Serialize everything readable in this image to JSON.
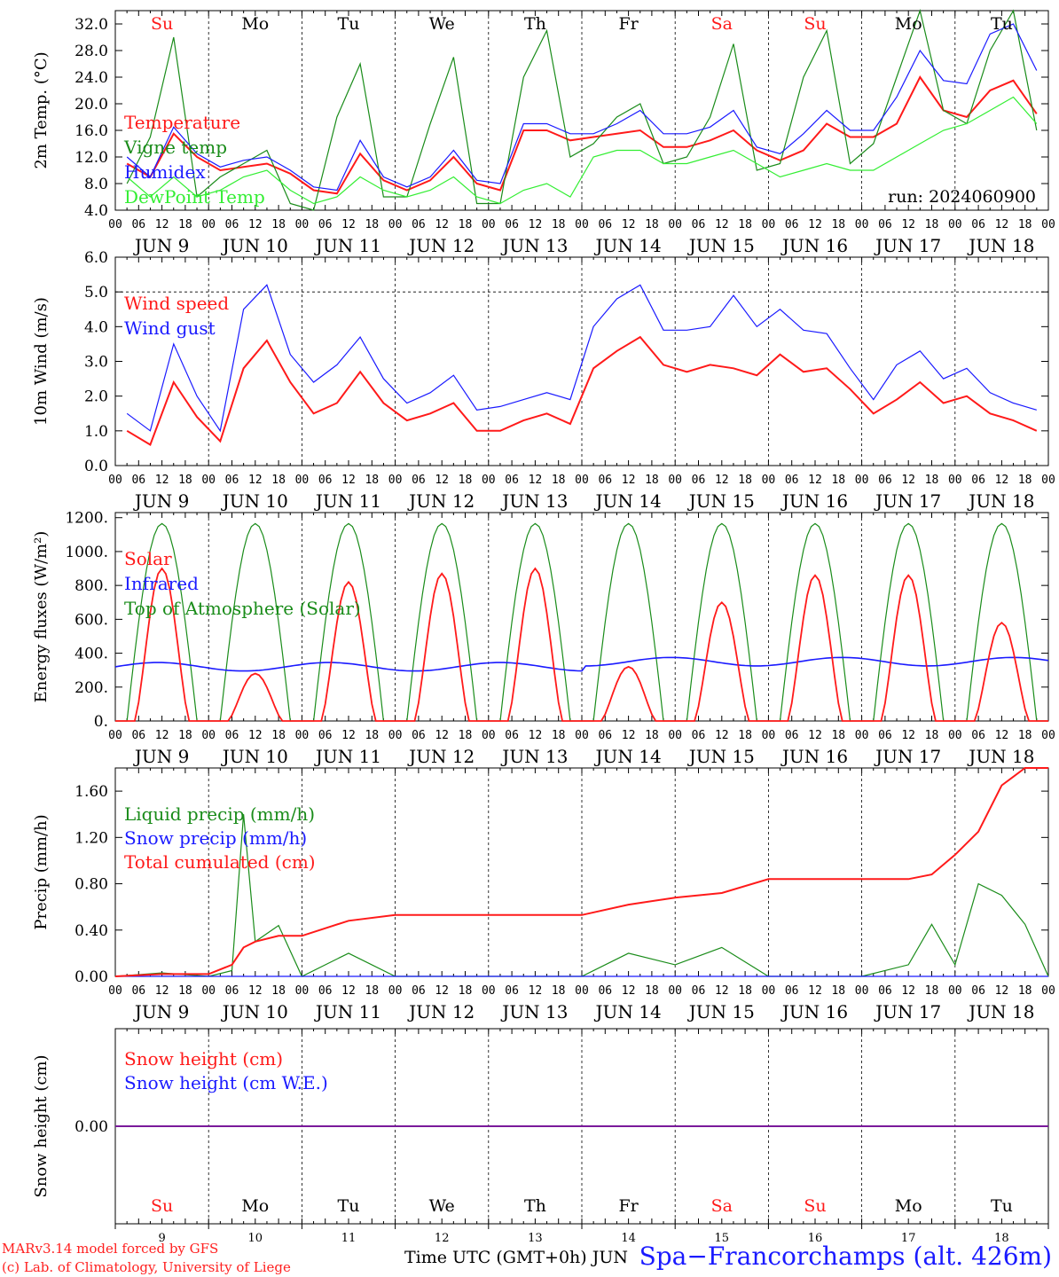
{
  "colors": {
    "red": "#ff1a1a",
    "green": "#1a8c1a",
    "blue": "#1a1aff",
    "lightgreen": "#33ee33",
    "purple": "#7a1a9a",
    "black": "#000000"
  },
  "x_axis": {
    "tick_labels": [
      "00",
      "06",
      "12",
      "18"
    ],
    "date_labels": [
      "JUN  9",
      "JUN 10",
      "JUN 11",
      "JUN 12",
      "JUN 13",
      "JUN 14",
      "JUN 15",
      "JUN 16",
      "JUN 17",
      "JUN 18"
    ],
    "weekday_labels": [
      "Su",
      "Mo",
      "Tu",
      "We",
      "Th",
      "Fr",
      "Sa",
      "Su",
      "Mo",
      "Tu"
    ],
    "weekday_colors": [
      "red",
      "black",
      "black",
      "black",
      "black",
      "black",
      "red",
      "red",
      "black",
      "black"
    ],
    "day_numbers": [
      "9",
      "10",
      "11",
      "12",
      "13",
      "14",
      "15",
      "16",
      "17",
      "18"
    ],
    "xlabel": "Time UTC (GMT+0h) JUN"
  },
  "chart_data": [
    {
      "type": "line",
      "ylabel": "2m Temp. (°C)",
      "ylim": [
        4,
        34
      ],
      "yticks": [
        "4.0",
        "8.0",
        "12.0",
        "16.0",
        "20.0",
        "24.0",
        "28.0",
        "32.0"
      ],
      "ytick_values": [
        4,
        8,
        12,
        16,
        20,
        24,
        28,
        32
      ],
      "annotation": "run: 2024060900",
      "x_hours": [
        0,
        6,
        12,
        18,
        24,
        30,
        36,
        42,
        48,
        54,
        60,
        66,
        72,
        78,
        84,
        90,
        96,
        102,
        108,
        114,
        120,
        126,
        132,
        138,
        144,
        150,
        156,
        162,
        168,
        174,
        180,
        186,
        192,
        198,
        204,
        210,
        216,
        222,
        228,
        234
      ],
      "series": [
        {
          "name": "Temperature",
          "color": "red",
          "values": [
            11,
            9,
            15.5,
            12,
            10,
            10.5,
            11,
            9.5,
            7,
            6.5,
            12.5,
            8.5,
            7,
            8.5,
            12,
            8,
            7,
            16,
            16,
            14.5,
            15,
            15.5,
            16,
            13.5,
            13.5,
            14.5,
            16,
            13,
            11.5,
            13,
            17,
            15,
            15,
            17,
            24,
            19,
            18,
            22,
            23.5,
            18.5
          ]
        },
        {
          "name": "Vigne temp",
          "color": "green",
          "values": [
            8,
            15,
            30,
            6,
            9,
            11,
            13,
            5,
            4,
            18,
            26,
            6,
            6,
            17,
            27,
            5,
            5,
            24,
            31,
            12,
            14,
            18,
            20,
            11,
            12,
            18,
            29,
            10,
            11,
            24,
            31,
            11,
            14,
            24,
            34,
            19,
            17,
            28,
            35,
            16
          ]
        },
        {
          "name": "Humidex",
          "color": "blue",
          "values": [
            12,
            9,
            16.5,
            12.5,
            10.5,
            11.5,
            12,
            10,
            7.5,
            7,
            14.5,
            9,
            7.5,
            9,
            13,
            8.5,
            8,
            17,
            17,
            15.5,
            15.5,
            17,
            19,
            15.5,
            15.5,
            16.5,
            19,
            13.5,
            12.5,
            15.5,
            19,
            16,
            16,
            21,
            28,
            23.5,
            23,
            30.5,
            32,
            25
          ]
        },
        {
          "name": "DewPoint Temp",
          "color": "lightgreen",
          "values": [
            9,
            6,
            9,
            6,
            7,
            9,
            10,
            7,
            5,
            6,
            9,
            7,
            6,
            7,
            9,
            6,
            5,
            7,
            8,
            6,
            12,
            13,
            13,
            11,
            11,
            12,
            13,
            11,
            9,
            10,
            11,
            10,
            10,
            12,
            14,
            16,
            17,
            19,
            21,
            17
          ]
        }
      ]
    },
    {
      "type": "line",
      "ylabel": "10m Wind (m/s)",
      "ylim": [
        0,
        6
      ],
      "yticks": [
        "0.0",
        "1.0",
        "2.0",
        "3.0",
        "4.0",
        "5.0",
        "6.0"
      ],
      "ytick_values": [
        0,
        1,
        2,
        3,
        4,
        5,
        6
      ],
      "dashed_line": 5.0,
      "x_hours": [
        0,
        6,
        12,
        18,
        24,
        30,
        36,
        42,
        48,
        54,
        60,
        66,
        72,
        78,
        84,
        90,
        96,
        102,
        108,
        114,
        120,
        126,
        132,
        138,
        144,
        150,
        156,
        162,
        168,
        174,
        180,
        186,
        192,
        198,
        204,
        210,
        216,
        222,
        228,
        234
      ],
      "series": [
        {
          "name": "Wind speed",
          "color": "red",
          "values": [
            1.0,
            0.6,
            2.4,
            1.4,
            0.7,
            2.8,
            3.6,
            2.4,
            1.5,
            1.8,
            2.7,
            1.8,
            1.3,
            1.5,
            1.8,
            1.0,
            1.0,
            1.3,
            1.5,
            1.2,
            2.8,
            3.3,
            3.7,
            2.9,
            2.7,
            2.9,
            2.8,
            2.6,
            3.2,
            2.7,
            2.8,
            2.2,
            1.5,
            1.9,
            2.4,
            1.8,
            2.0,
            1.5,
            1.3,
            1.0
          ]
        },
        {
          "name": "Wind gust",
          "color": "blue",
          "values": [
            1.5,
            1.0,
            3.5,
            2.0,
            1.0,
            4.5,
            5.2,
            3.2,
            2.4,
            2.9,
            3.7,
            2.5,
            1.8,
            2.1,
            2.6,
            1.6,
            1.7,
            1.9,
            2.1,
            1.9,
            4.0,
            4.8,
            5.2,
            3.9,
            3.9,
            4.0,
            4.9,
            4.0,
            4.5,
            3.9,
            3.8,
            2.8,
            1.9,
            2.9,
            3.3,
            2.5,
            2.8,
            2.1,
            1.8,
            1.6
          ]
        }
      ]
    },
    {
      "type": "line",
      "ylabel": "Energy fluxes (W/m²)",
      "ylim": [
        0,
        1230
      ],
      "yticks": [
        "0.",
        "200.",
        "400.",
        "600.",
        "800.",
        "1000.",
        "1200."
      ],
      "ytick_values": [
        0,
        200,
        400,
        600,
        800,
        1000,
        1200
      ],
      "solar_daily_peaks": [
        900,
        280,
        820,
        870,
        900,
        320,
        700,
        860,
        860,
        580
      ],
      "toa_peak": 1165,
      "infrared_base": 320,
      "series": [
        {
          "name": "Solar",
          "color": "red"
        },
        {
          "name": "Infrared",
          "color": "blue"
        },
        {
          "name": "Top of Atmosphere (Solar)",
          "color": "green"
        }
      ]
    },
    {
      "type": "line",
      "ylabel": "Precip (mm/h)",
      "ylim": [
        0,
        1.8
      ],
      "yticks": [
        "0.00",
        "0.40",
        "0.80",
        "1.20",
        "1.60"
      ],
      "ytick_values": [
        0,
        0.4,
        0.8,
        1.2,
        1.6
      ],
      "x_hours": [
        0,
        12,
        24,
        30,
        33,
        36,
        42,
        48,
        60,
        72,
        90,
        120,
        132,
        144,
        156,
        168,
        180,
        192,
        204,
        210,
        216,
        222,
        228,
        234,
        240
      ],
      "series": [
        {
          "name": "Liquid precip (mm/h)",
          "color": "green",
          "values": [
            0.0,
            0.03,
            0.0,
            0.05,
            1.4,
            0.3,
            0.44,
            0.0,
            0.2,
            0.0,
            0.0,
            0.0,
            0.2,
            0.1,
            0.25,
            0.0,
            0.0,
            0.0,
            0.1,
            0.45,
            0.1,
            0.8,
            0.7,
            0.45,
            0.0
          ]
        },
        {
          "name": "Snow precip (mm/h)",
          "color": "blue",
          "values": [
            0,
            0,
            0,
            0,
            0,
            0,
            0,
            0,
            0,
            0,
            0,
            0,
            0,
            0,
            0,
            0,
            0,
            0,
            0,
            0,
            0,
            0,
            0,
            0,
            0
          ]
        },
        {
          "name": "Total cumulated (cm)",
          "color": "red",
          "values": [
            0.0,
            0.02,
            0.02,
            0.1,
            0.25,
            0.3,
            0.35,
            0.35,
            0.48,
            0.53,
            0.53,
            0.53,
            0.62,
            0.68,
            0.72,
            0.84,
            0.84,
            0.84,
            0.84,
            0.88,
            1.05,
            1.25,
            1.65,
            1.8,
            1.8
          ]
        }
      ]
    },
    {
      "type": "line",
      "ylabel": "Snow height (cm)",
      "ylim": [
        -1,
        1
      ],
      "yticks": [
        "0.00"
      ],
      "ytick_values": [
        0
      ],
      "series": [
        {
          "name": "Snow height (cm)",
          "color": "red",
          "values": [
            0,
            0
          ]
        },
        {
          "name": "Snow height (cm W.E.)",
          "color": "blue",
          "values": [
            0,
            0
          ]
        }
      ]
    }
  ],
  "footer": {
    "line1": "MARv3.14 model forced by GFS",
    "line2": "(c) Lab. of Climatology, University of Liege",
    "xlabel": "Time UTC (GMT+0h) JUN",
    "station": "Spa−Francorchamps (alt. 426m)"
  }
}
